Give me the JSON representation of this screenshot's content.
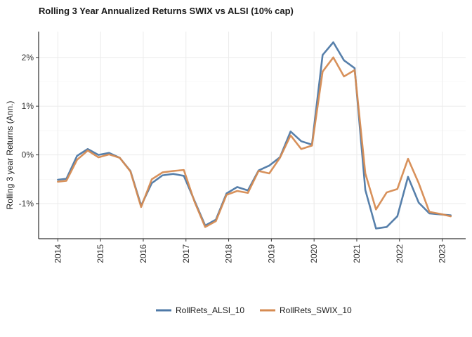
{
  "chart_data": {
    "type": "line",
    "title": "Rolling 3 Year Annualized Returns SWIX vs ALSI (10% cap)",
    "xlabel": "",
    "ylabel": "Rolling 3 year Returns (Ann.)",
    "x_ticks": [
      "2014",
      "2015",
      "2016",
      "2017",
      "2018",
      "2019",
      "2020",
      "2021",
      "2022",
      "2023"
    ],
    "y_ticks": [
      {
        "value": 0.02,
        "label": "2%"
      },
      {
        "value": 0.01,
        "label": "1%"
      },
      {
        "value": 0.0,
        "label": "0%"
      },
      {
        "value": -0.01,
        "label": "-1%"
      }
    ],
    "xlim": [
      2013.55,
      2023.55
    ],
    "ylim": [
      -0.0172,
      0.0253
    ],
    "grid": true,
    "legend_position": "bottom",
    "colors": {
      "alsi": "#4e79a7",
      "swix": "#d68b52"
    },
    "x": [
      2014.0,
      2014.2,
      2014.45,
      2014.7,
      2014.95,
      2015.2,
      2015.45,
      2015.7,
      2015.95,
      2016.2,
      2016.45,
      2016.7,
      2016.95,
      2017.2,
      2017.45,
      2017.7,
      2017.95,
      2018.2,
      2018.45,
      2018.7,
      2018.95,
      2019.2,
      2019.45,
      2019.7,
      2019.95,
      2020.2,
      2020.45,
      2020.7,
      2020.95,
      2021.2,
      2021.45,
      2021.7,
      2021.95,
      2022.2,
      2022.45,
      2022.7,
      2022.95,
      2023.2
    ],
    "series": [
      {
        "name": "RollRets_ALSI_10",
        "color": "#4e79a7",
        "values": [
          -0.0051,
          -0.0049,
          -0.0002,
          0.0012,
          0.0,
          0.0004,
          -0.0006,
          -0.0033,
          -0.0104,
          -0.0058,
          -0.0042,
          -0.0039,
          -0.0043,
          -0.0094,
          -0.0145,
          -0.0133,
          -0.0079,
          -0.0066,
          -0.0073,
          -0.0032,
          -0.0022,
          -0.0005,
          0.0048,
          0.0028,
          0.0021,
          0.0205,
          0.0231,
          0.0194,
          0.0178,
          -0.0072,
          -0.0151,
          -0.0148,
          -0.0126,
          -0.0045,
          -0.0098,
          -0.012,
          -0.0122,
          -0.0124
        ]
      },
      {
        "name": "RollRets_SWIX_10",
        "color": "#d68b52",
        "values": [
          -0.0055,
          -0.0053,
          -0.001,
          0.0009,
          -0.0005,
          0.0001,
          -0.0006,
          -0.0034,
          -0.0107,
          -0.005,
          -0.0036,
          -0.0033,
          -0.0031,
          -0.0096,
          -0.0148,
          -0.0136,
          -0.0082,
          -0.0074,
          -0.0078,
          -0.0033,
          -0.0038,
          -0.0006,
          0.004,
          0.0012,
          0.0019,
          0.0171,
          0.02,
          0.0161,
          0.0174,
          -0.0038,
          -0.0112,
          -0.0077,
          -0.007,
          -0.0008,
          -0.0058,
          -0.0117,
          -0.0121,
          -0.0126
        ]
      }
    ]
  }
}
